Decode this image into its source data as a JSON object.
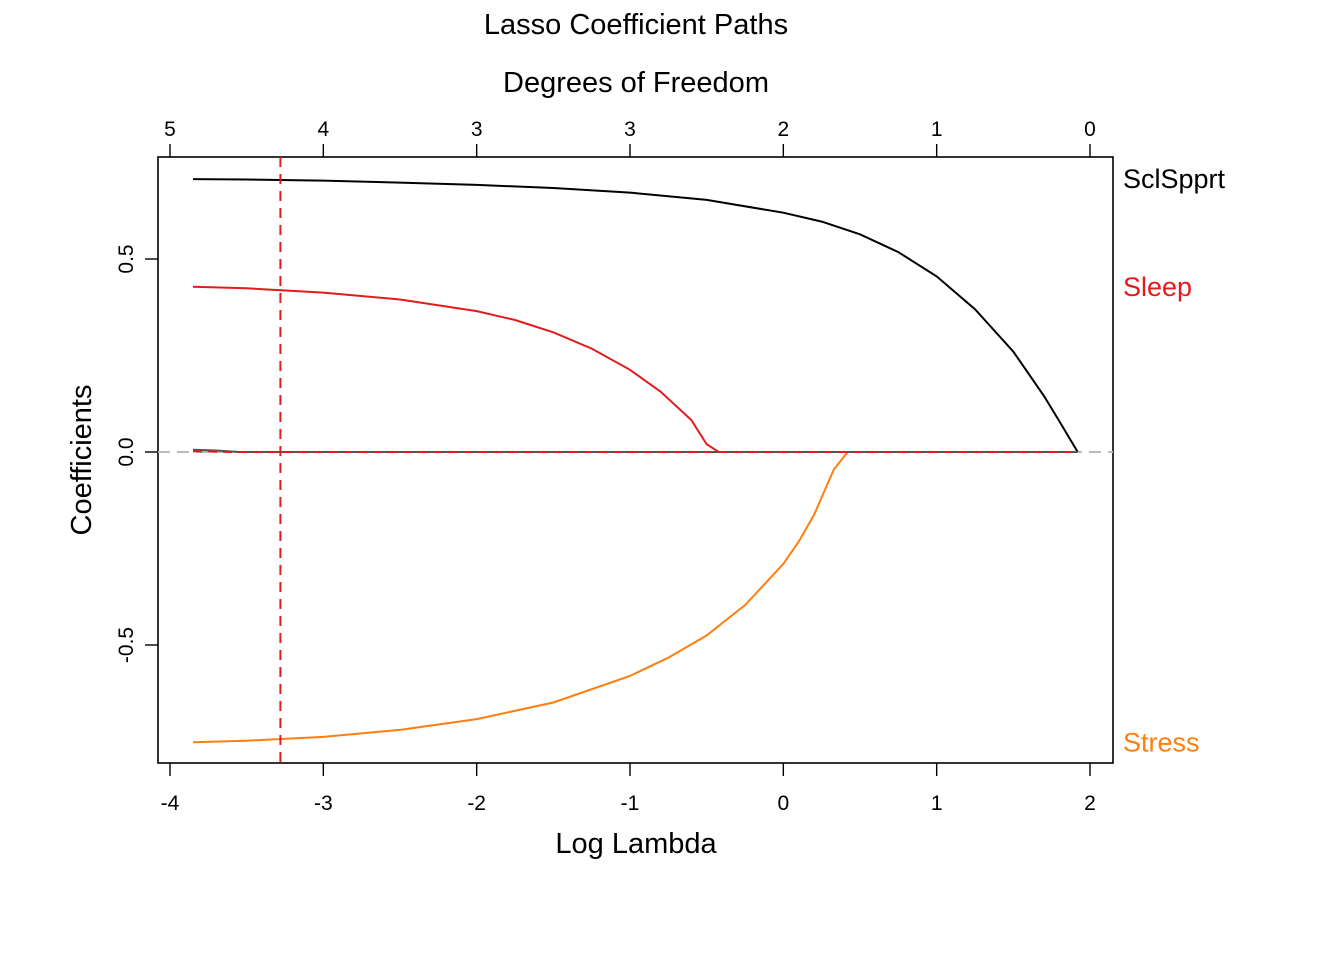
{
  "chart_data": {
    "type": "line",
    "title": "Lasso Coefficient Paths",
    "xlabel": "Log Lambda",
    "ylabel": "Coefficients",
    "top_axis_label": "Degrees of Freedom",
    "xlim": [
      -4,
      2
    ],
    "ylim": [
      -0.75,
      0.72
    ],
    "x_ticks": [
      -4,
      -3,
      -2,
      -1,
      0,
      1,
      2
    ],
    "y_ticks": [
      -0.5,
      0.0,
      0.5
    ],
    "y_tick_labels": [
      "-0.5",
      "0.0",
      "0.5"
    ],
    "top_ticks": [
      {
        "x": -4,
        "df": "5"
      },
      {
        "x": -3,
        "df": "4"
      },
      {
        "x": -2,
        "df": "3"
      },
      {
        "x": -1,
        "df": "3"
      },
      {
        "x": 0,
        "df": "2"
      },
      {
        "x": 1,
        "df": "1"
      },
      {
        "x": 2,
        "df": "0"
      }
    ],
    "zero_line": {
      "y": 0,
      "color": "#bbbbbb",
      "style": "dashed"
    },
    "vline": {
      "x": -3.28,
      "color": "#e41a1c",
      "style": "dashed"
    },
    "grid": false,
    "series": [
      {
        "name": "SclSpprt",
        "color": "#000000",
        "points": [
          [
            -3.85,
            0.707
          ],
          [
            -3.5,
            0.706
          ],
          [
            -3,
            0.703
          ],
          [
            -2.5,
            0.698
          ],
          [
            -2,
            0.692
          ],
          [
            -1.5,
            0.684
          ],
          [
            -1,
            0.672
          ],
          [
            -0.5,
            0.653
          ],
          [
            0,
            0.62
          ],
          [
            0.25,
            0.597
          ],
          [
            0.5,
            0.564
          ],
          [
            0.75,
            0.518
          ],
          [
            1,
            0.455
          ],
          [
            1.25,
            0.37
          ],
          [
            1.5,
            0.26
          ],
          [
            1.7,
            0.145
          ],
          [
            1.8,
            0.08
          ],
          [
            1.92,
            0.0
          ]
        ]
      },
      {
        "name": "Sleep",
        "color": "#e41a1c",
        "points": [
          [
            -3.85,
            0.428
          ],
          [
            -3.5,
            0.424
          ],
          [
            -3,
            0.413
          ],
          [
            -2.5,
            0.395
          ],
          [
            -2,
            0.365
          ],
          [
            -1.75,
            0.342
          ],
          [
            -1.5,
            0.31
          ],
          [
            -1.25,
            0.268
          ],
          [
            -1,
            0.213
          ],
          [
            -0.8,
            0.156
          ],
          [
            -0.6,
            0.083
          ],
          [
            -0.5,
            0.02
          ],
          [
            -0.42,
            0.0
          ],
          [
            1.92,
            0.0
          ]
        ]
      },
      {
        "name": "Stress",
        "color": "#ff7f0e",
        "points": [
          [
            -3.85,
            -0.752
          ],
          [
            -3.5,
            -0.748
          ],
          [
            -3,
            -0.738
          ],
          [
            -2.5,
            -0.72
          ],
          [
            -2,
            -0.692
          ],
          [
            -1.5,
            -0.649
          ],
          [
            -1,
            -0.58
          ],
          [
            -0.75,
            -0.533
          ],
          [
            -0.5,
            -0.475
          ],
          [
            -0.25,
            -0.397
          ],
          [
            0,
            -0.29
          ],
          [
            0.1,
            -0.232
          ],
          [
            0.2,
            -0.163
          ],
          [
            0.33,
            -0.045
          ],
          [
            0.42,
            0.0
          ],
          [
            1.92,
            0.0
          ]
        ]
      },
      {
        "name": "",
        "color": "#555555",
        "points": [
          [
            -3.85,
            0.006
          ],
          [
            -3.7,
            0.004
          ],
          [
            -3.55,
            0.0
          ],
          [
            1.92,
            0.0
          ]
        ]
      },
      {
        "name": "",
        "color": "#e41a1c",
        "style": "dashed",
        "points": [
          [
            -3.85,
            0.002
          ],
          [
            -3.6,
            0.0
          ],
          [
            1.92,
            0.0
          ]
        ]
      }
    ]
  }
}
